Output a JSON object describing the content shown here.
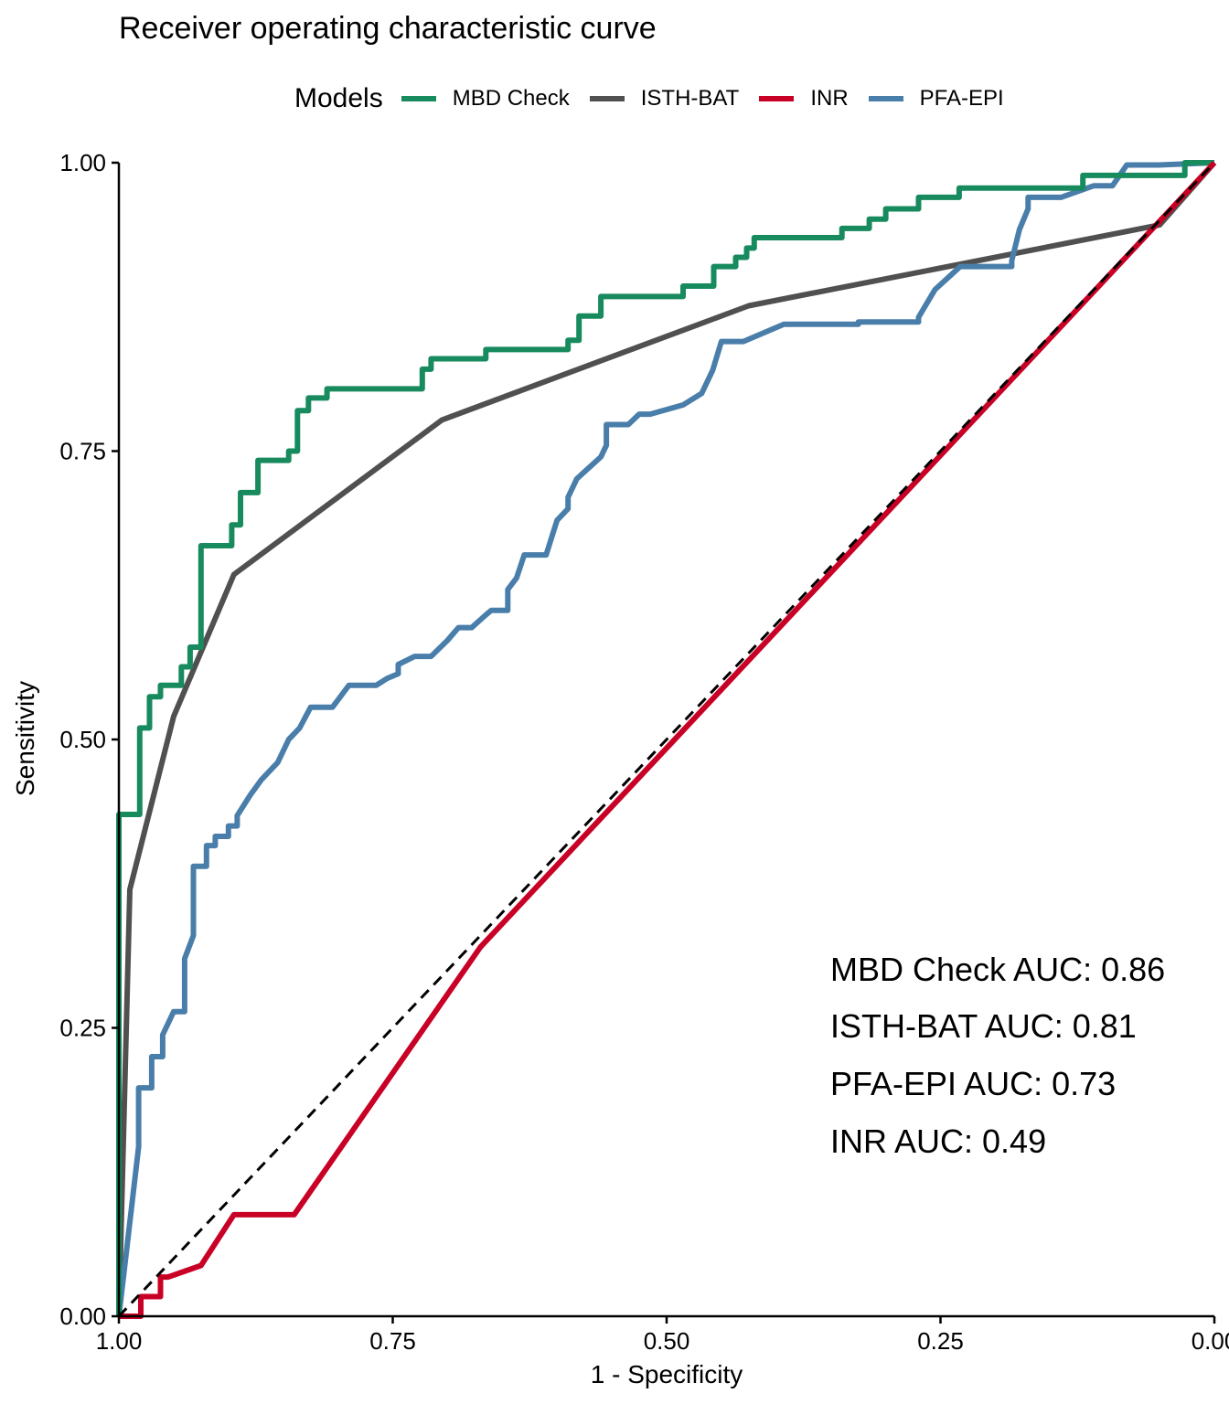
{
  "chart_data": {
    "type": "line",
    "title": "Receiver operating characteristic curve",
    "xlabel": "1 - Specificity",
    "ylabel": "Sensitivity",
    "xlim": [
      1.0,
      0.0
    ],
    "ylim": [
      0.0,
      1.0
    ],
    "x_reversed": true,
    "grid": false,
    "xticks": [
      "1.00",
      "0.75",
      "0.50",
      "0.25",
      "0.00"
    ],
    "yticks": [
      "0.00",
      "0.25",
      "0.50",
      "0.75",
      "1.00"
    ],
    "legend": {
      "title": "Models",
      "position": "top",
      "entries": [
        "MBD Check",
        "ISTH-BAT",
        "INR",
        "PFA-EPI"
      ]
    },
    "reference_line": {
      "style": "dashed",
      "color": "#000000",
      "from": [
        1.0,
        0.0
      ],
      "to": [
        0.0,
        1.0
      ]
    },
    "series": [
      {
        "name": "MBD Check",
        "color": "#178a5e",
        "points": [
          [
            1.0,
            0.0
          ],
          [
            1.0,
            0.435
          ],
          [
            0.981,
            0.435
          ],
          [
            0.981,
            0.51
          ],
          [
            0.972,
            0.51
          ],
          [
            0.972,
            0.537
          ],
          [
            0.962,
            0.537
          ],
          [
            0.962,
            0.547
          ],
          [
            0.943,
            0.547
          ],
          [
            0.943,
            0.563
          ],
          [
            0.935,
            0.563
          ],
          [
            0.935,
            0.58
          ],
          [
            0.925,
            0.58
          ],
          [
            0.925,
            0.668
          ],
          [
            0.897,
            0.668
          ],
          [
            0.897,
            0.686
          ],
          [
            0.889,
            0.686
          ],
          [
            0.889,
            0.714
          ],
          [
            0.873,
            0.714
          ],
          [
            0.873,
            0.742
          ],
          [
            0.845,
            0.742
          ],
          [
            0.845,
            0.75
          ],
          [
            0.837,
            0.75
          ],
          [
            0.837,
            0.785
          ],
          [
            0.827,
            0.785
          ],
          [
            0.827,
            0.796
          ],
          [
            0.81,
            0.796
          ],
          [
            0.81,
            0.804
          ],
          [
            0.723,
            0.804
          ],
          [
            0.723,
            0.821
          ],
          [
            0.715,
            0.821
          ],
          [
            0.715,
            0.83
          ],
          [
            0.665,
            0.83
          ],
          [
            0.665,
            0.838
          ],
          [
            0.59,
            0.838
          ],
          [
            0.59,
            0.846
          ],
          [
            0.58,
            0.846
          ],
          [
            0.58,
            0.867
          ],
          [
            0.56,
            0.867
          ],
          [
            0.56,
            0.884
          ],
          [
            0.485,
            0.884
          ],
          [
            0.485,
            0.893
          ],
          [
            0.457,
            0.893
          ],
          [
            0.457,
            0.91
          ],
          [
            0.437,
            0.91
          ],
          [
            0.437,
            0.918
          ],
          [
            0.427,
            0.918
          ],
          [
            0.427,
            0.926
          ],
          [
            0.42,
            0.926
          ],
          [
            0.42,
            0.935
          ],
          [
            0.34,
            0.935
          ],
          [
            0.34,
            0.943
          ],
          [
            0.315,
            0.943
          ],
          [
            0.315,
            0.951
          ],
          [
            0.3,
            0.951
          ],
          [
            0.3,
            0.96
          ],
          [
            0.27,
            0.96
          ],
          [
            0.27,
            0.97
          ],
          [
            0.233,
            0.97
          ],
          [
            0.233,
            0.978
          ],
          [
            0.12,
            0.978
          ],
          [
            0.12,
            0.989
          ],
          [
            0.027,
            0.989
          ],
          [
            0.027,
            1.0
          ],
          [
            0.0,
            1.0
          ]
        ]
      },
      {
        "name": "ISTH-BAT",
        "color": "#505050",
        "points": [
          [
            1.0,
            0.0
          ],
          [
            0.99,
            0.37
          ],
          [
            0.95,
            0.52
          ],
          [
            0.895,
            0.643
          ],
          [
            0.705,
            0.777
          ],
          [
            0.425,
            0.876
          ],
          [
            0.05,
            0.946
          ],
          [
            0.0,
            1.0
          ]
        ]
      },
      {
        "name": "INR",
        "color": "#c90026",
        "points": [
          [
            1.0,
            0.0
          ],
          [
            0.98,
            0.0
          ],
          [
            0.98,
            0.017
          ],
          [
            0.962,
            0.017
          ],
          [
            0.962,
            0.034
          ],
          [
            0.955,
            0.034
          ],
          [
            0.925,
            0.044
          ],
          [
            0.895,
            0.088
          ],
          [
            0.84,
            0.088
          ],
          [
            0.67,
            0.32
          ],
          [
            0.0,
            1.0
          ]
        ]
      },
      {
        "name": "PFA-EPI",
        "color": "#4a7eaa",
        "points": [
          [
            1.0,
            0.0
          ],
          [
            0.982,
            0.147
          ],
          [
            0.982,
            0.198
          ],
          [
            0.97,
            0.198
          ],
          [
            0.97,
            0.225
          ],
          [
            0.96,
            0.225
          ],
          [
            0.96,
            0.244
          ],
          [
            0.95,
            0.264
          ],
          [
            0.94,
            0.264
          ],
          [
            0.94,
            0.31
          ],
          [
            0.932,
            0.33
          ],
          [
            0.932,
            0.39
          ],
          [
            0.92,
            0.39
          ],
          [
            0.92,
            0.408
          ],
          [
            0.912,
            0.408
          ],
          [
            0.912,
            0.416
          ],
          [
            0.9,
            0.416
          ],
          [
            0.9,
            0.425
          ],
          [
            0.892,
            0.425
          ],
          [
            0.892,
            0.434
          ],
          [
            0.88,
            0.452
          ],
          [
            0.87,
            0.465
          ],
          [
            0.855,
            0.48
          ],
          [
            0.845,
            0.5
          ],
          [
            0.835,
            0.51
          ],
          [
            0.825,
            0.528
          ],
          [
            0.805,
            0.528
          ],
          [
            0.79,
            0.547
          ],
          [
            0.765,
            0.547
          ],
          [
            0.755,
            0.553
          ],
          [
            0.745,
            0.557
          ],
          [
            0.745,
            0.565
          ],
          [
            0.73,
            0.572
          ],
          [
            0.715,
            0.572
          ],
          [
            0.7,
            0.586
          ],
          [
            0.69,
            0.597
          ],
          [
            0.678,
            0.597
          ],
          [
            0.665,
            0.608
          ],
          [
            0.66,
            0.612
          ],
          [
            0.645,
            0.612
          ],
          [
            0.645,
            0.63
          ],
          [
            0.637,
            0.64
          ],
          [
            0.63,
            0.66
          ],
          [
            0.61,
            0.66
          ],
          [
            0.6,
            0.69
          ],
          [
            0.59,
            0.7
          ],
          [
            0.59,
            0.71
          ],
          [
            0.582,
            0.726
          ],
          [
            0.56,
            0.745
          ],
          [
            0.555,
            0.755
          ],
          [
            0.555,
            0.773
          ],
          [
            0.535,
            0.773
          ],
          [
            0.525,
            0.782
          ],
          [
            0.515,
            0.782
          ],
          [
            0.485,
            0.79
          ],
          [
            0.468,
            0.8
          ],
          [
            0.458,
            0.82
          ],
          [
            0.45,
            0.845
          ],
          [
            0.43,
            0.845
          ],
          [
            0.393,
            0.86
          ],
          [
            0.325,
            0.86
          ],
          [
            0.325,
            0.862
          ],
          [
            0.27,
            0.862
          ],
          [
            0.27,
            0.866
          ],
          [
            0.255,
            0.89
          ],
          [
            0.24,
            0.903
          ],
          [
            0.232,
            0.91
          ],
          [
            0.185,
            0.91
          ],
          [
            0.185,
            0.915
          ],
          [
            0.178,
            0.942
          ],
          [
            0.17,
            0.96
          ],
          [
            0.17,
            0.97
          ],
          [
            0.14,
            0.97
          ],
          [
            0.11,
            0.98
          ],
          [
            0.093,
            0.98
          ],
          [
            0.08,
            0.998
          ],
          [
            0.05,
            0.998
          ],
          [
            0.0,
            1.0
          ]
        ]
      }
    ],
    "annotations": [
      "MBD Check AUC: 0.86",
      "ISTH-BAT AUC: 0.81",
      "PFA-EPI AUC: 0.73",
      "INR AUC: 0.49"
    ]
  }
}
